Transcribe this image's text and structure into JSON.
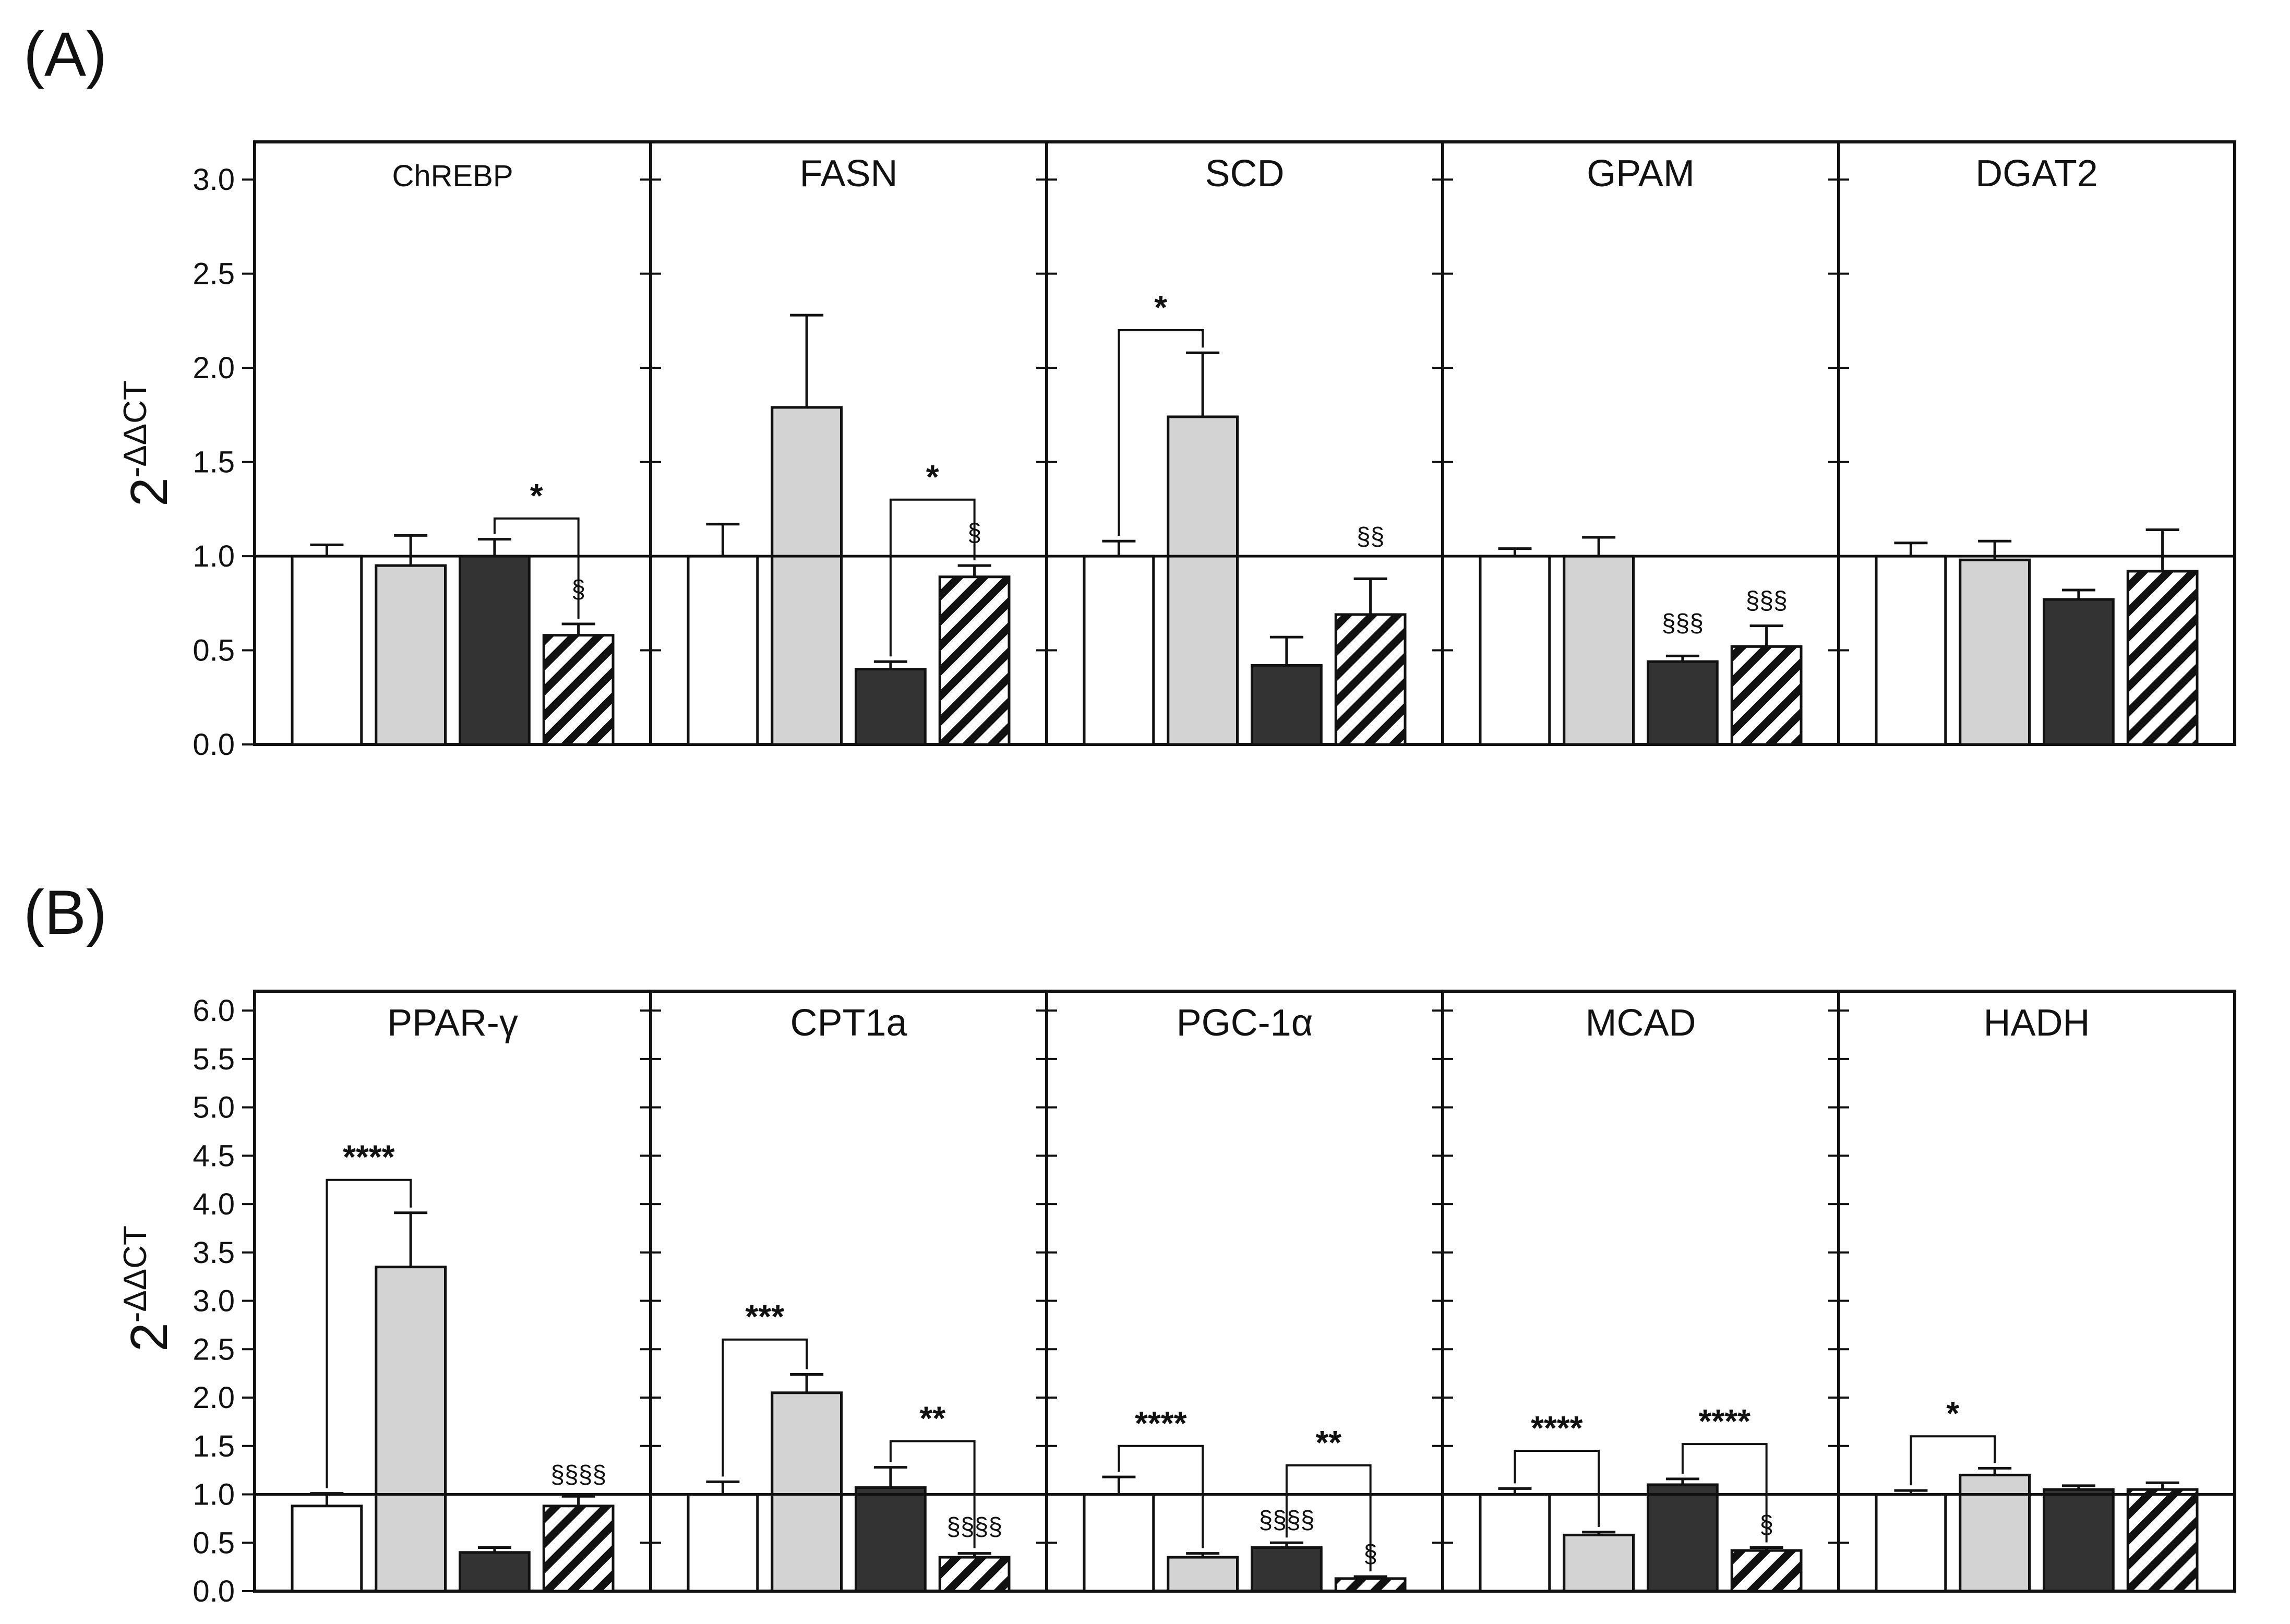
{
  "figure": {
    "panel_labels": [
      "(A)",
      "(B)"
    ],
    "ylabel_base": "2",
    "ylabel_exp": "-ΔΔCT",
    "colors": {
      "ctrl": "#ffffff",
      "grey": "#d3d3d3",
      "dark": "#333333",
      "edge": "#111111"
    }
  },
  "chart_data": [
    {
      "type": "bar",
      "panel": "(A)",
      "ylim": [
        0,
        3.2
      ],
      "yticks": [
        "0.0",
        "0.5",
        "1.0",
        "1.5",
        "2.0",
        "2.5",
        "3.0"
      ],
      "ytick_values": [
        0,
        0.5,
        1,
        1.5,
        2,
        2.5,
        3
      ],
      "reference_line": 1.0,
      "groups": [
        {
          "title": "ChREBP",
          "values": [
            1.0,
            0.95,
            1.0,
            0.58
          ],
          "errors": [
            0.06,
            0.16,
            0.09,
            0.06
          ],
          "stars": [
            {
              "from": 2,
              "to": 3,
              "y": 1.2,
              "label": "*"
            }
          ],
          "marks": [
            {
              "bar": 3,
              "y": 0.78,
              "label": "§"
            }
          ]
        },
        {
          "title": "FASN",
          "values": [
            1.0,
            1.79,
            0.4,
            0.89
          ],
          "errors": [
            0.17,
            0.49,
            0.04,
            0.06
          ],
          "stars": [
            {
              "from": 2,
              "to": 3,
              "y": 1.3,
              "label": "*"
            }
          ],
          "marks": [
            {
              "bar": 3,
              "y": 1.08,
              "label": "§"
            }
          ]
        },
        {
          "title": "SCD",
          "values": [
            1.0,
            1.74,
            0.42,
            0.69
          ],
          "errors": [
            0.08,
            0.34,
            0.15,
            0.19
          ],
          "stars": [
            {
              "from": 0,
              "to": 1,
              "y": 2.2,
              "label": "*"
            }
          ],
          "marks": [
            {
              "bar": 3,
              "y": 1.06,
              "label": "§§"
            }
          ]
        },
        {
          "title": "GPAM",
          "values": [
            1.0,
            1.0,
            0.44,
            0.52
          ],
          "errors": [
            0.04,
            0.1,
            0.03,
            0.11
          ],
          "stars": [],
          "marks": [
            {
              "bar": 2,
              "y": 0.6,
              "label": "§§§"
            },
            {
              "bar": 3,
              "y": 0.72,
              "label": "§§§"
            }
          ]
        },
        {
          "title": "DGAT2",
          "values": [
            1.0,
            0.98,
            0.77,
            0.92
          ],
          "errors": [
            0.07,
            0.1,
            0.05,
            0.22
          ],
          "stars": [],
          "marks": []
        }
      ]
    },
    {
      "type": "bar",
      "panel": "(B)",
      "ylim": [
        0,
        6.2
      ],
      "yticks": [
        "0.0",
        "0.5",
        "1.0",
        "1.5",
        "2.0",
        "2.5",
        "3.0",
        "3.5",
        "4.0",
        "4.5",
        "5.0",
        "5.5",
        "6.0"
      ],
      "ytick_values": [
        0,
        0.5,
        1,
        1.5,
        2,
        2.5,
        3,
        3.5,
        4,
        4.5,
        5,
        5.5,
        6
      ],
      "reference_line": 1.0,
      "groups": [
        {
          "title": "PPAR-γ",
          "values": [
            0.88,
            3.35,
            0.4,
            0.88
          ],
          "errors": [
            0.13,
            0.56,
            0.05,
            0.1
          ],
          "stars": [
            {
              "from": 0,
              "to": 1,
              "y": 4.25,
              "label": "****"
            }
          ],
          "marks": [
            {
              "bar": 3,
              "y": 1.12,
              "label": "§§§§"
            }
          ]
        },
        {
          "title": "CPT1a",
          "values": [
            1.0,
            2.05,
            1.07,
            0.35
          ],
          "errors": [
            0.13,
            0.19,
            0.21,
            0.04
          ],
          "stars": [
            {
              "from": 0,
              "to": 1,
              "y": 2.6,
              "label": "***"
            },
            {
              "from": 2,
              "to": 3,
              "y": 1.55,
              "label": "**"
            }
          ],
          "marks": [
            {
              "bar": 3,
              "y": 0.58,
              "label": "§§§§"
            }
          ]
        },
        {
          "title": "PGC-1α",
          "values": [
            1.0,
            0.35,
            0.45,
            0.13
          ],
          "errors": [
            0.18,
            0.04,
            0.05,
            0.02
          ],
          "stars": [
            {
              "from": 0,
              "to": 1,
              "y": 1.5,
              "label": "****"
            },
            {
              "from": 2,
              "to": 3,
              "y": 1.3,
              "label": "**"
            }
          ],
          "marks": [
            {
              "bar": 2,
              "y": 0.65,
              "label": "§§§§"
            },
            {
              "bar": 3,
              "y": 0.3,
              "label": "§"
            }
          ]
        },
        {
          "title": "MCAD",
          "values": [
            1.0,
            0.58,
            1.1,
            0.42
          ],
          "errors": [
            0.06,
            0.03,
            0.06,
            0.03
          ],
          "stars": [
            {
              "from": 0,
              "to": 1,
              "y": 1.45,
              "label": "****"
            },
            {
              "from": 2,
              "to": 3,
              "y": 1.52,
              "label": "****"
            }
          ],
          "marks": [
            {
              "bar": 3,
              "y": 0.6,
              "label": "§"
            }
          ]
        },
        {
          "title": "HADH",
          "values": [
            1.0,
            1.2,
            1.05,
            1.05
          ],
          "errors": [
            0.04,
            0.07,
            0.04,
            0.07
          ],
          "stars": [
            {
              "from": 0,
              "to": 1,
              "y": 1.6,
              "label": "*"
            }
          ],
          "marks": []
        }
      ]
    }
  ]
}
